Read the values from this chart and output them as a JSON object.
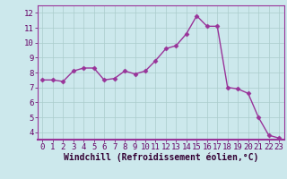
{
  "x": [
    0,
    1,
    2,
    3,
    4,
    5,
    6,
    7,
    8,
    9,
    10,
    11,
    12,
    13,
    14,
    15,
    16,
    17,
    18,
    19,
    20,
    21,
    22,
    23
  ],
  "y": [
    7.5,
    7.5,
    7.4,
    8.1,
    8.3,
    8.3,
    7.5,
    7.6,
    8.1,
    7.9,
    8.1,
    8.8,
    9.6,
    9.8,
    10.6,
    11.8,
    11.1,
    11.1,
    7.0,
    6.9,
    6.6,
    5.0,
    3.8,
    3.6
  ],
  "line_color": "#993399",
  "marker": "D",
  "markersize": 2.5,
  "linewidth": 1.0,
  "xlabel": "Windchill (Refroidissement éolien,°C)",
  "xlim": [
    -0.5,
    23.5
  ],
  "ylim": [
    3.5,
    12.5
  ],
  "yticks": [
    4,
    5,
    6,
    7,
    8,
    9,
    10,
    11,
    12
  ],
  "xticks": [
    0,
    1,
    2,
    3,
    4,
    5,
    6,
    7,
    8,
    9,
    10,
    11,
    12,
    13,
    14,
    15,
    16,
    17,
    18,
    19,
    20,
    21,
    22,
    23
  ],
  "bg_color": "#cce8ec",
  "grid_color": "#aacccc",
  "tick_label_color": "#660066",
  "xlabel_color": "#330033",
  "xlabel_fontsize": 7,
  "tick_fontsize": 6.5,
  "border_color": "#993399"
}
